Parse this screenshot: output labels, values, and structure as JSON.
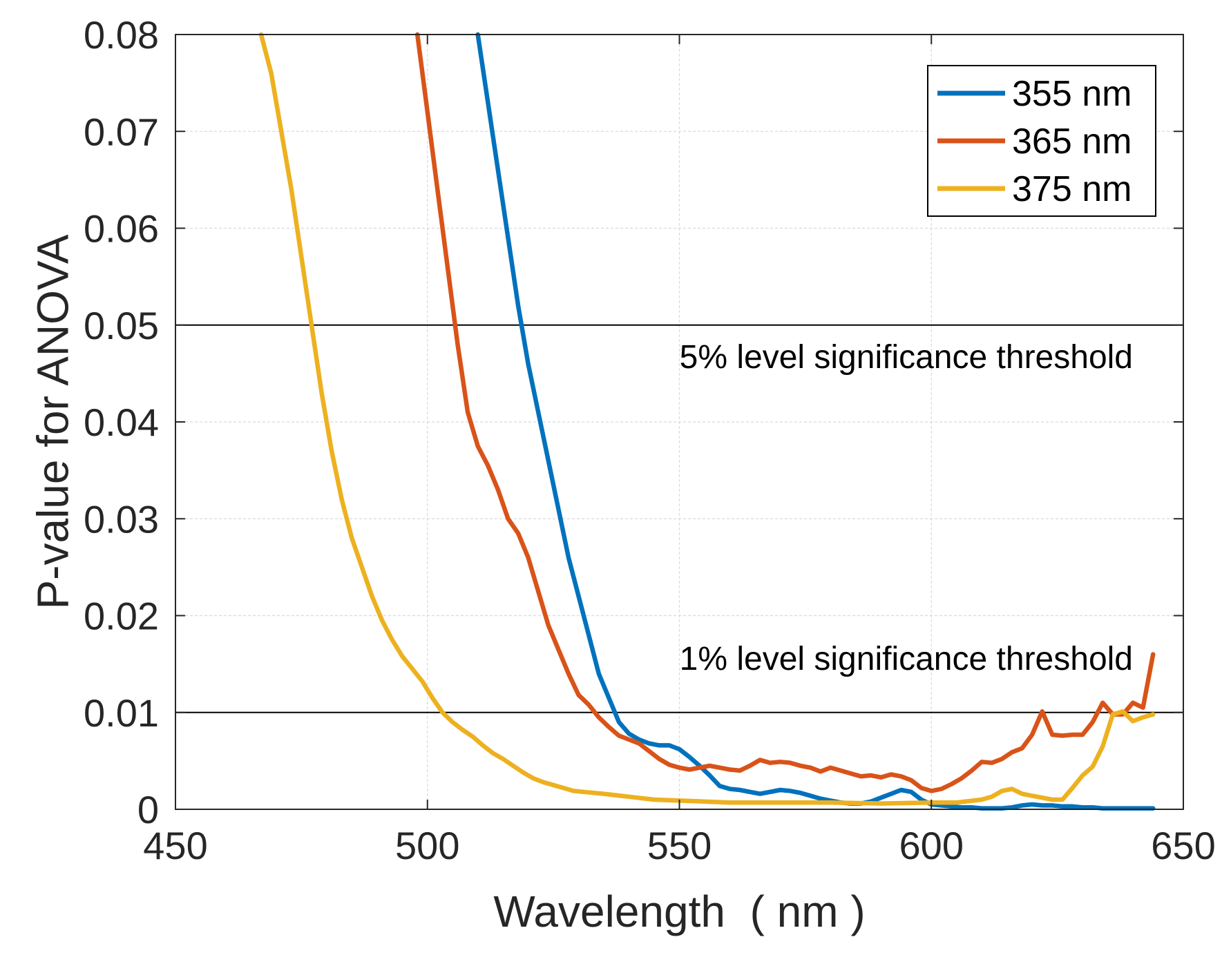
{
  "chart_data": {
    "type": "line",
    "xlabel": "Wavelength  ( nm )",
    "ylabel": "P-value for ANOVA",
    "xlim": [
      450,
      650
    ],
    "ylim": [
      0,
      0.08
    ],
    "xticks": [
      450,
      500,
      550,
      600,
      650
    ],
    "xtick_labels": [
      "450",
      "500",
      "550",
      "600",
      "650"
    ],
    "yticks": [
      0,
      0.01,
      0.02,
      0.03,
      0.04,
      0.05,
      0.06,
      0.07,
      0.08
    ],
    "ytick_labels": [
      "0",
      "0.01",
      "0.02",
      "0.03",
      "0.04",
      "0.05",
      "0.06",
      "0.07",
      "0.08"
    ],
    "grid": true,
    "legend_position": "top-right",
    "thresholds": [
      {
        "value": 0.05,
        "label": "5% level significance threshold"
      },
      {
        "value": 0.01,
        "label": "1% level significance threshold"
      }
    ],
    "series": [
      {
        "name": "355 nm",
        "color": "#0072BD",
        "x": [
          510,
          512,
          514,
          516,
          518,
          520,
          522,
          524,
          526,
          528,
          530,
          532,
          534,
          536,
          538,
          540,
          542,
          544,
          546,
          548,
          550,
          552,
          554,
          556,
          558,
          560,
          562,
          564,
          566,
          568,
          570,
          572,
          574,
          576,
          578,
          580,
          582,
          584,
          586,
          588,
          590,
          592,
          594,
          596,
          598,
          600,
          602,
          604,
          606,
          608,
          610,
          612,
          614,
          616,
          618,
          620,
          622,
          624,
          626,
          628,
          630,
          632,
          634,
          636,
          638,
          640,
          642,
          644
        ],
        "y": [
          0.08,
          0.073,
          0.066,
          0.059,
          0.052,
          0.046,
          0.041,
          0.036,
          0.031,
          0.026,
          0.022,
          0.018,
          0.014,
          0.0115,
          0.009,
          0.0078,
          0.0072,
          0.0068,
          0.0066,
          0.0066,
          0.0062,
          0.0054,
          0.0045,
          0.0035,
          0.0024,
          0.0021,
          0.002,
          0.0018,
          0.0016,
          0.0018,
          0.002,
          0.0019,
          0.0017,
          0.0014,
          0.0011,
          0.0009,
          0.0007,
          0.0006,
          0.0006,
          0.0008,
          0.0012,
          0.0016,
          0.002,
          0.0018,
          0.001,
          0.0005,
          0.0004,
          0.0003,
          0.0002,
          0.0002,
          0.0001,
          0.0001,
          0.0001,
          0.0002,
          0.0004,
          0.0005,
          0.0004,
          0.0004,
          0.0003,
          0.0003,
          0.0002,
          0.0002,
          0.0001,
          0.0001,
          0.0001,
          0.0001,
          0.0001,
          0.0001
        ]
      },
      {
        "name": "365 nm",
        "color": "#D95319",
        "x": [
          498,
          500,
          502,
          504,
          506,
          508,
          510,
          512,
          514,
          516,
          518,
          520,
          522,
          524,
          526,
          528,
          530,
          532,
          534,
          536,
          538,
          540,
          542,
          544,
          546,
          548,
          550,
          552,
          554,
          556,
          558,
          560,
          562,
          564,
          566,
          568,
          570,
          572,
          574,
          576,
          578,
          580,
          582,
          584,
          586,
          588,
          590,
          592,
          594,
          596,
          598,
          600,
          602,
          604,
          606,
          608,
          610,
          612,
          614,
          616,
          618,
          620,
          622,
          624,
          626,
          628,
          630,
          632,
          634,
          636,
          638,
          640,
          642,
          644
        ],
        "y": [
          0.08,
          0.072,
          0.064,
          0.056,
          0.048,
          0.041,
          0.0375,
          0.0355,
          0.033,
          0.03,
          0.0285,
          0.026,
          0.0225,
          0.019,
          0.0165,
          0.014,
          0.0118,
          0.0108,
          0.0095,
          0.0085,
          0.0076,
          0.0072,
          0.0068,
          0.006,
          0.0052,
          0.0046,
          0.0043,
          0.0041,
          0.0043,
          0.0045,
          0.0043,
          0.0041,
          0.004,
          0.0045,
          0.0051,
          0.0048,
          0.0049,
          0.0048,
          0.0045,
          0.0043,
          0.0039,
          0.0043,
          0.004,
          0.0037,
          0.0034,
          0.0035,
          0.0033,
          0.0036,
          0.0034,
          0.003,
          0.0022,
          0.0019,
          0.0021,
          0.0026,
          0.0032,
          0.004,
          0.0049,
          0.0048,
          0.0052,
          0.0059,
          0.0063,
          0.0077,
          0.0101,
          0.0077,
          0.0076,
          0.0077,
          0.0077,
          0.009,
          0.011,
          0.0098,
          0.0098,
          0.011,
          0.0105,
          0.016
        ]
      },
      {
        "name": "375 nm",
        "color": "#EDB120",
        "x": [
          467,
          469,
          471,
          473,
          475,
          477,
          479,
          481,
          483,
          485,
          487,
          489,
          491,
          493,
          495,
          497,
          499,
          501,
          503,
          505,
          507,
          509,
          511,
          513,
          515,
          517,
          519,
          521,
          523,
          525,
          527,
          529,
          531,
          533,
          535,
          540,
          545,
          550,
          560,
          570,
          580,
          590,
          600,
          605,
          610,
          612,
          614,
          616,
          618,
          620,
          622,
          624,
          626,
          628,
          630,
          632,
          634,
          636,
          638,
          640,
          642,
          644
        ],
        "y": [
          0.08,
          0.076,
          0.07,
          0.064,
          0.057,
          0.05,
          0.043,
          0.037,
          0.032,
          0.028,
          0.025,
          0.022,
          0.0195,
          0.0175,
          0.0158,
          0.0145,
          0.0132,
          0.0115,
          0.01,
          0.009,
          0.0082,
          0.0075,
          0.0066,
          0.0058,
          0.0052,
          0.0045,
          0.0038,
          0.0032,
          0.0028,
          0.0025,
          0.0022,
          0.0019,
          0.0018,
          0.0017,
          0.0016,
          0.0013,
          0.001,
          0.0009,
          0.0007,
          0.0007,
          0.0007,
          0.0006,
          0.0007,
          0.0007,
          0.001,
          0.0013,
          0.0019,
          0.0021,
          0.0016,
          0.0014,
          0.0012,
          0.001,
          0.001,
          0.0022,
          0.0035,
          0.0044,
          0.0065,
          0.0098,
          0.0101,
          0.0091,
          0.0095,
          0.0098
        ]
      }
    ]
  }
}
